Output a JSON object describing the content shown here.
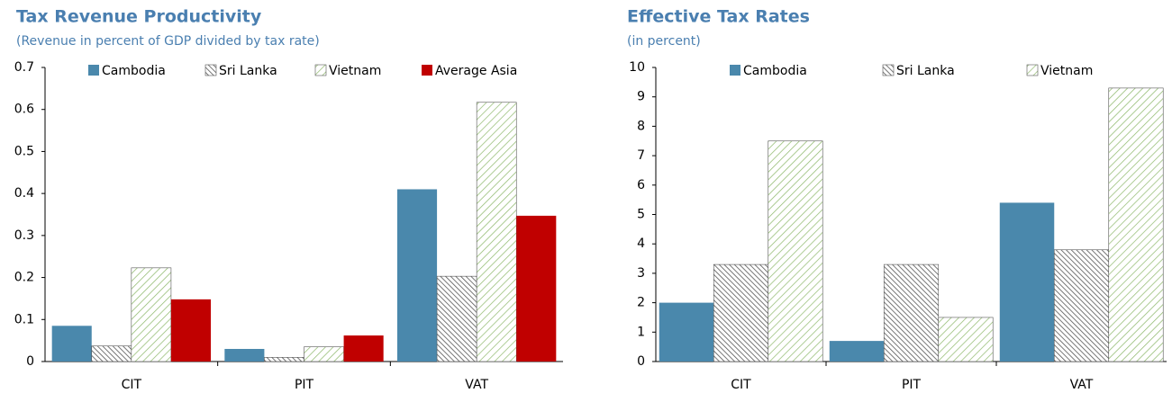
{
  "chart_data": [
    {
      "type": "bar",
      "title": "Tax Revenue Productivity",
      "subtitle": "(Revenue in percent of GDP divided by tax rate)",
      "categories": [
        "CIT",
        "PIT",
        "VAT"
      ],
      "series": [
        {
          "name": "Cambodia",
          "color": "#4a88ac",
          "pattern": "solid",
          "values": [
            0.085,
            0.03,
            0.41
          ]
        },
        {
          "name": "Sri Lanka",
          "color": "#555555",
          "pattern": "crosshatch",
          "values": [
            0.037,
            0.01,
            0.203
          ]
        },
        {
          "name": "Vietnam",
          "color": "#8db86a",
          "pattern": "diagonal",
          "values": [
            0.223,
            0.035,
            0.617
          ]
        },
        {
          "name": "Average Asia",
          "color": "#c00000",
          "pattern": "solid",
          "values": [
            0.148,
            0.062,
            0.347
          ]
        }
      ],
      "ylim": [
        0,
        0.7
      ],
      "yticks": [
        0,
        0.1,
        0.2,
        0.3,
        0.4,
        0.5,
        0.6,
        0.7
      ],
      "grid": false,
      "legend": "top"
    },
    {
      "type": "bar",
      "title": "Effective Tax Rates",
      "subtitle": "(in percent)",
      "categories": [
        "CIT",
        "PIT",
        "VAT"
      ],
      "series": [
        {
          "name": "Cambodia",
          "color": "#4a88ac",
          "pattern": "solid",
          "values": [
            2,
            0.7,
            5.4
          ]
        },
        {
          "name": "Sri Lanka",
          "color": "#555555",
          "pattern": "crosshatch",
          "values": [
            3.3,
            3.3,
            3.8
          ]
        },
        {
          "name": "Vietnam",
          "color": "#8db86a",
          "pattern": "diagonal",
          "values": [
            7.5,
            1.5,
            9.3
          ]
        }
      ],
      "ylim": [
        0,
        10
      ],
      "yticks": [
        0,
        1,
        2,
        3,
        4,
        5,
        6,
        7,
        8,
        9,
        10
      ],
      "grid": false,
      "legend": "top"
    }
  ]
}
